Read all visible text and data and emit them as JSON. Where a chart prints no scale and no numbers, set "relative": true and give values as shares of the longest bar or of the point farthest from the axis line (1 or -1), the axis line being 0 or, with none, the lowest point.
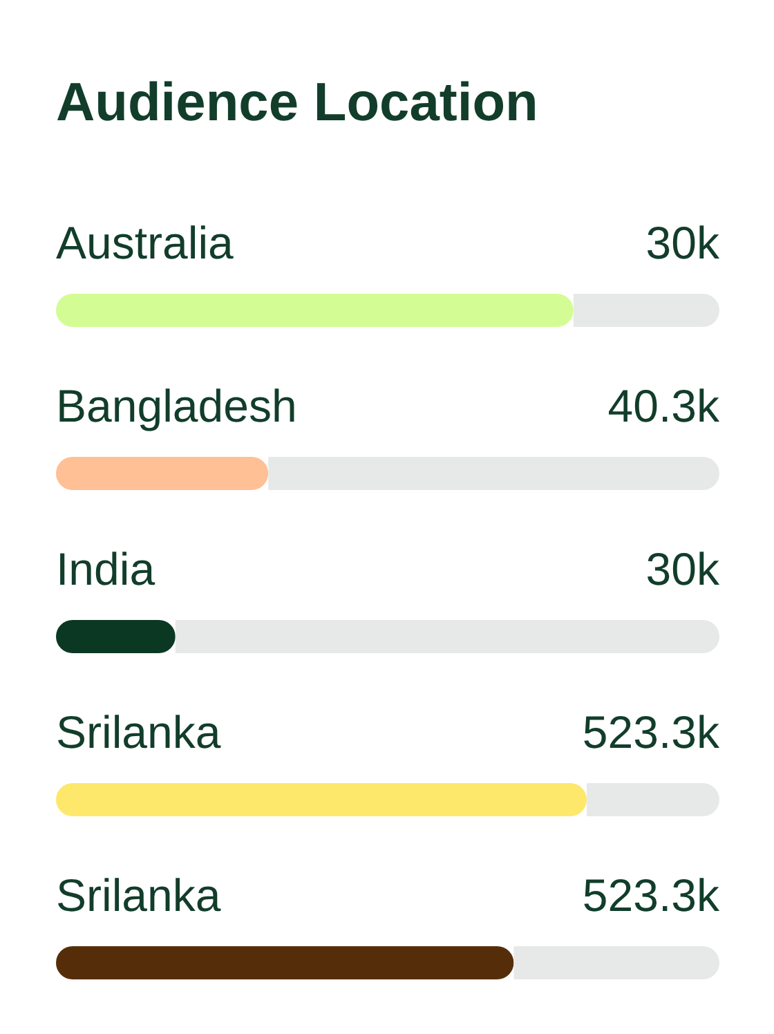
{
  "chart_data": {
    "type": "bar",
    "title": "Audience Location",
    "orientation": "horizontal",
    "stacked": true,
    "relative": true,
    "categories": [
      "Australia",
      "Bangladesh",
      "India",
      "Srilanka",
      "Srilanka"
    ],
    "series": [
      {
        "colors": [
          "#d4fc94",
          "#fec094",
          "#0b3823",
          "#fee86c",
          "#552e09"
        ],
        "values": [
          0.78,
          0.32,
          0.18,
          0.8,
          0.69
        ]
      },
      {
        "color": "#e6e9e7",
        "values": [
          0.22,
          0.68,
          0.82,
          0.2,
          0.31
        ]
      }
    ],
    "annotations": [
      "30k",
      "40.3k",
      "30k",
      "523.3k",
      "523.3k"
    ]
  }
}
